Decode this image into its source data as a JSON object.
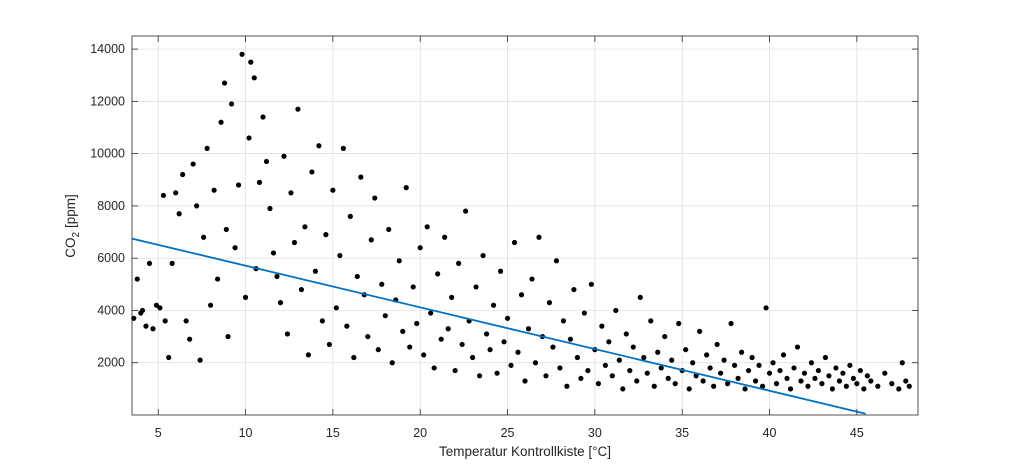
{
  "chart_data": {
    "type": "scatter",
    "xlabel": "Temperatur Kontrollkiste [°C]",
    "ylabel": {
      "main": "CO",
      "sub": "2",
      "unit": "[ppm]"
    },
    "xlim": [
      3.5,
      48.5
    ],
    "ylim": [
      0,
      14500
    ],
    "xticks": [
      5,
      10,
      15,
      20,
      25,
      30,
      35,
      40,
      45
    ],
    "yticks": [
      2000,
      4000,
      6000,
      8000,
      10000,
      12000,
      14000
    ],
    "grid": true,
    "point_color": "#000000",
    "fit_line": {
      "x": [
        3.5,
        45.5
      ],
      "y": [
        6750,
        50
      ],
      "color": "#0072BD"
    },
    "series": [
      {
        "points": [
          [
            3.6,
            3700
          ],
          [
            3.8,
            5200
          ],
          [
            4.0,
            3900
          ],
          [
            4.1,
            4000
          ],
          [
            4.3,
            3400
          ],
          [
            4.5,
            5800
          ],
          [
            4.7,
            3300
          ],
          [
            4.9,
            4200
          ],
          [
            5.1,
            4100
          ],
          [
            5.3,
            8400
          ],
          [
            5.4,
            3600
          ],
          [
            5.6,
            2200
          ],
          [
            5.8,
            5800
          ],
          [
            6.0,
            8500
          ],
          [
            6.2,
            7700
          ],
          [
            6.4,
            9200
          ],
          [
            6.6,
            3600
          ],
          [
            6.8,
            2900
          ],
          [
            7.0,
            9600
          ],
          [
            7.2,
            8000
          ],
          [
            7.4,
            2100
          ],
          [
            7.6,
            6800
          ],
          [
            7.8,
            10200
          ],
          [
            8.0,
            4200
          ],
          [
            8.2,
            8600
          ],
          [
            8.4,
            5200
          ],
          [
            8.6,
            11200
          ],
          [
            8.8,
            12700
          ],
          [
            8.9,
            7100
          ],
          [
            9.0,
            3000
          ],
          [
            9.2,
            11900
          ],
          [
            9.4,
            6400
          ],
          [
            9.6,
            8800
          ],
          [
            9.8,
            13800
          ],
          [
            10.0,
            4500
          ],
          [
            10.2,
            10600
          ],
          [
            10.3,
            13500
          ],
          [
            10.5,
            12900
          ],
          [
            10.6,
            5600
          ],
          [
            10.8,
            8900
          ],
          [
            11.0,
            11400
          ],
          [
            11.2,
            9700
          ],
          [
            11.4,
            7900
          ],
          [
            11.6,
            6200
          ],
          [
            11.8,
            5300
          ],
          [
            12.0,
            4300
          ],
          [
            12.2,
            9900
          ],
          [
            12.4,
            3100
          ],
          [
            12.6,
            8500
          ],
          [
            12.8,
            6600
          ],
          [
            13.0,
            11700
          ],
          [
            13.2,
            4800
          ],
          [
            13.4,
            7200
          ],
          [
            13.6,
            2300
          ],
          [
            13.8,
            9300
          ],
          [
            14.0,
            5500
          ],
          [
            14.2,
            10300
          ],
          [
            14.4,
            3600
          ],
          [
            14.6,
            6900
          ],
          [
            14.8,
            2700
          ],
          [
            15.0,
            8600
          ],
          [
            15.2,
            4100
          ],
          [
            15.4,
            6100
          ],
          [
            15.6,
            10200
          ],
          [
            15.8,
            3400
          ],
          [
            16.0,
            7600
          ],
          [
            16.2,
            2200
          ],
          [
            16.4,
            5300
          ],
          [
            16.6,
            9100
          ],
          [
            16.8,
            4600
          ],
          [
            17.0,
            3000
          ],
          [
            17.2,
            6700
          ],
          [
            17.4,
            8300
          ],
          [
            17.6,
            2500
          ],
          [
            17.8,
            5000
          ],
          [
            18.0,
            3800
          ],
          [
            18.2,
            7100
          ],
          [
            18.4,
            2000
          ],
          [
            18.6,
            4400
          ],
          [
            18.8,
            5900
          ],
          [
            19.0,
            3200
          ],
          [
            19.2,
            8700
          ],
          [
            19.4,
            2600
          ],
          [
            19.6,
            4900
          ],
          [
            19.8,
            3500
          ],
          [
            20.0,
            6400
          ],
          [
            20.2,
            2300
          ],
          [
            20.4,
            7200
          ],
          [
            20.6,
            3900
          ],
          [
            20.8,
            1800
          ],
          [
            21.0,
            5400
          ],
          [
            21.2,
            2900
          ],
          [
            21.4,
            6800
          ],
          [
            21.6,
            3300
          ],
          [
            21.8,
            4500
          ],
          [
            22.0,
            1700
          ],
          [
            22.2,
            5800
          ],
          [
            22.4,
            2700
          ],
          [
            22.6,
            7800
          ],
          [
            22.8,
            3600
          ],
          [
            23.0,
            2200
          ],
          [
            23.2,
            4900
          ],
          [
            23.4,
            1500
          ],
          [
            23.6,
            6100
          ],
          [
            23.8,
            3100
          ],
          [
            24.0,
            2500
          ],
          [
            24.2,
            4200
          ],
          [
            24.4,
            1600
          ],
          [
            24.6,
            5500
          ],
          [
            24.8,
            2800
          ],
          [
            25.0,
            3700
          ],
          [
            25.2,
            1900
          ],
          [
            25.4,
            6600
          ],
          [
            25.6,
            2400
          ],
          [
            25.8,
            4600
          ],
          [
            26.0,
            1300
          ],
          [
            26.2,
            3300
          ],
          [
            26.4,
            5200
          ],
          [
            26.6,
            2000
          ],
          [
            26.8,
            6800
          ],
          [
            27.0,
            3000
          ],
          [
            27.2,
            1500
          ],
          [
            27.4,
            4300
          ],
          [
            27.6,
            2600
          ],
          [
            27.8,
            5900
          ],
          [
            28.0,
            1800
          ],
          [
            28.2,
            3600
          ],
          [
            28.4,
            1100
          ],
          [
            28.6,
            2900
          ],
          [
            28.8,
            4800
          ],
          [
            29.0,
            2200
          ],
          [
            29.2,
            1400
          ],
          [
            29.4,
            3900
          ],
          [
            29.6,
            1700
          ],
          [
            29.8,
            5000
          ],
          [
            30.0,
            2500
          ],
          [
            30.2,
            1200
          ],
          [
            30.4,
            3400
          ],
          [
            30.6,
            1900
          ],
          [
            30.8,
            2800
          ],
          [
            31.0,
            1500
          ],
          [
            31.2,
            4000
          ],
          [
            31.4,
            2100
          ],
          [
            31.6,
            1000
          ],
          [
            31.8,
            3100
          ],
          [
            32.0,
            1700
          ],
          [
            32.2,
            2600
          ],
          [
            32.4,
            1300
          ],
          [
            32.6,
            4500
          ],
          [
            32.8,
            2200
          ],
          [
            33.0,
            1600
          ],
          [
            33.2,
            3600
          ],
          [
            33.4,
            1100
          ],
          [
            33.6,
            2400
          ],
          [
            33.8,
            1800
          ],
          [
            34.0,
            3000
          ],
          [
            34.2,
            1400
          ],
          [
            34.4,
            2100
          ],
          [
            34.6,
            1200
          ],
          [
            34.8,
            3500
          ],
          [
            35.0,
            1700
          ],
          [
            35.2,
            2500
          ],
          [
            35.4,
            1000
          ],
          [
            35.6,
            2000
          ],
          [
            35.8,
            1500
          ],
          [
            36.0,
            3200
          ],
          [
            36.2,
            1300
          ],
          [
            36.4,
            2300
          ],
          [
            36.6,
            1800
          ],
          [
            36.8,
            1100
          ],
          [
            37.0,
            2700
          ],
          [
            37.2,
            1600
          ],
          [
            37.4,
            2100
          ],
          [
            37.6,
            1200
          ],
          [
            37.8,
            3500
          ],
          [
            38.0,
            1900
          ],
          [
            38.2,
            1400
          ],
          [
            38.4,
            2400
          ],
          [
            38.6,
            1000
          ],
          [
            38.8,
            1700
          ],
          [
            39.0,
            2200
          ],
          [
            39.2,
            1300
          ],
          [
            39.4,
            1900
          ],
          [
            39.6,
            1100
          ],
          [
            39.8,
            4100
          ],
          [
            40.0,
            1600
          ],
          [
            40.2,
            2000
          ],
          [
            40.4,
            1200
          ],
          [
            40.6,
            1700
          ],
          [
            40.8,
            2300
          ],
          [
            41.0,
            1400
          ],
          [
            41.2,
            1000
          ],
          [
            41.4,
            1800
          ],
          [
            41.6,
            2600
          ],
          [
            41.8,
            1300
          ],
          [
            42.0,
            1600
          ],
          [
            42.2,
            1100
          ],
          [
            42.4,
            2000
          ],
          [
            42.6,
            1400
          ],
          [
            42.8,
            1700
          ],
          [
            43.0,
            1200
          ],
          [
            43.2,
            2200
          ],
          [
            43.4,
            1500
          ],
          [
            43.6,
            1000
          ],
          [
            43.8,
            1800
          ],
          [
            44.0,
            1300
          ],
          [
            44.2,
            1600
          ],
          [
            44.4,
            1100
          ],
          [
            44.6,
            1900
          ],
          [
            44.8,
            1400
          ],
          [
            45.0,
            1200
          ],
          [
            45.2,
            1700
          ],
          [
            45.4,
            1000
          ],
          [
            45.6,
            1500
          ],
          [
            45.8,
            1300
          ],
          [
            46.2,
            1100
          ],
          [
            46.6,
            1600
          ],
          [
            47.0,
            1200
          ],
          [
            47.4,
            1000
          ],
          [
            47.6,
            2000
          ],
          [
            47.8,
            1300
          ],
          [
            48.0,
            1100
          ]
        ]
      }
    ]
  }
}
